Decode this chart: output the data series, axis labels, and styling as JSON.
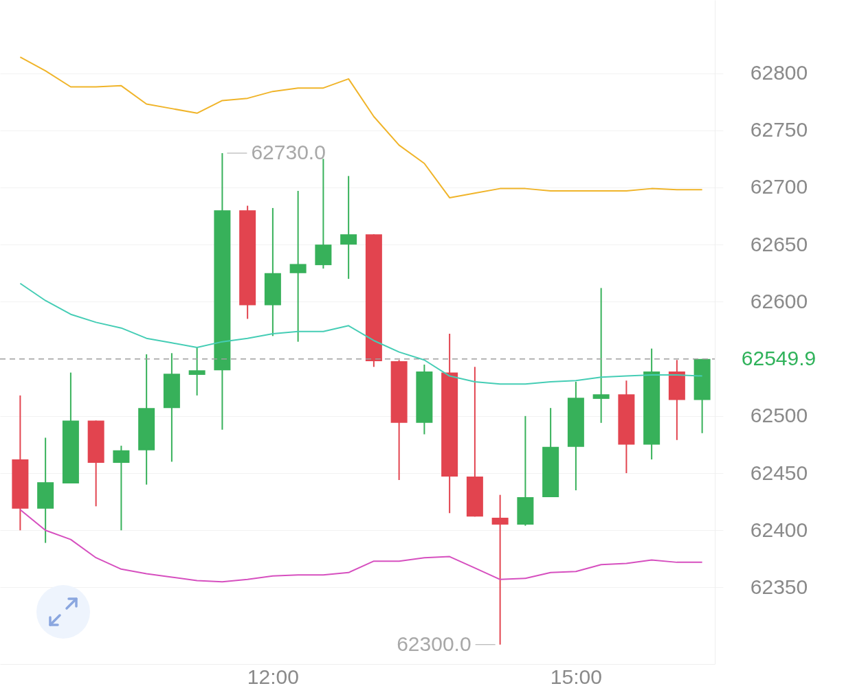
{
  "chart_data": {
    "type": "candlestick",
    "x": [
      9.5,
      9.75,
      10,
      10.25,
      10.5,
      10.75,
      11,
      11.25,
      11.5,
      11.75,
      12,
      12.25,
      12.5,
      12.75,
      13,
      13.25,
      13.5,
      13.75,
      14,
      14.25,
      14.5,
      14.75,
      15,
      15.25,
      15.5,
      15.75,
      16,
      16.25
    ],
    "ohlc": [
      [
        62462,
        62518,
        62400,
        62419
      ],
      [
        62419,
        62481,
        62389,
        62442
      ],
      [
        62441,
        62538,
        62441,
        62496
      ],
      [
        62496,
        62496,
        62421,
        62459
      ],
      [
        62459,
        62474,
        62400,
        62470
      ],
      [
        62470,
        62554,
        62440,
        62507
      ],
      [
        62507,
        62555,
        62460,
        62537
      ],
      [
        62536,
        62560,
        62518,
        62540
      ],
      [
        62540,
        62730,
        62488,
        62680
      ],
      [
        62680,
        62684,
        62585,
        62597
      ],
      [
        62597,
        62682,
        62570,
        62625
      ],
      [
        62625,
        62697,
        62565,
        62633
      ],
      [
        62632,
        62725,
        62629,
        62650
      ],
      [
        62650,
        62710,
        62620,
        62659
      ],
      [
        62659,
        62659,
        62543,
        62548
      ],
      [
        62548,
        62549,
        62444,
        62494
      ],
      [
        62494,
        62545,
        62484,
        62539
      ],
      [
        62538,
        62572,
        62415,
        62447
      ],
      [
        62447,
        62543,
        62412,
        62412
      ],
      [
        62411,
        62431,
        62300,
        62405
      ],
      [
        62405,
        62500,
        62404,
        62429
      ],
      [
        62429,
        62507,
        62429,
        62473
      ],
      [
        62473,
        62530,
        62435,
        62516
      ],
      [
        62515,
        62612,
        62494,
        62519
      ],
      [
        62519,
        62531,
        62450,
        62475
      ],
      [
        62475,
        62559,
        62462,
        62539
      ],
      [
        62539,
        62549,
        62479,
        62514
      ],
      [
        62514,
        62549.9,
        62485,
        62549.9
      ]
    ],
    "colors": [
      "#e2444f",
      "#37b15a",
      "#37b15a",
      "#e2444f",
      "#37b15a",
      "#37b15a",
      "#37b15a",
      "#37b15a",
      "#37b15a",
      "#e2444f",
      "#37b15a",
      "#37b15a",
      "#37b15a",
      "#37b15a",
      "#e2444f",
      "#e2444f",
      "#37b15a",
      "#e2444f",
      "#e2444f",
      "#e2444f",
      "#37b15a",
      "#37b15a",
      "#37b15a",
      "#37b15a",
      "#e2444f",
      "#37b15a",
      "#e2444f",
      "#37b15a"
    ],
    "series": [
      {
        "type": "line",
        "color": "#f0b429",
        "values": [
          62814,
          62802,
          62788,
          62788,
          62789,
          62773,
          62769,
          62765,
          62776,
          62778,
          62784,
          62787,
          62787,
          62795,
          62762,
          62737,
          62721,
          62691,
          62695,
          62699,
          62699,
          62697,
          62697,
          62697,
          62697,
          62699,
          62698,
          62698
        ]
      },
      {
        "type": "line",
        "color": "#45cdb5",
        "values": [
          62616,
          62601,
          62589,
          62582,
          62577,
          62568,
          62564,
          62560,
          62565,
          62568,
          62572,
          62574,
          62574,
          62579,
          62566,
          62556,
          62549,
          62535,
          62530,
          62528,
          62528,
          62530,
          62531,
          62534,
          62535,
          62536,
          62536,
          62535
        ]
      },
      {
        "type": "line",
        "color": "#d64fbf",
        "values": [
          62418,
          62400,
          62392,
          62376,
          62366,
          62362,
          62359,
          62356,
          62355,
          62357,
          62360,
          62361,
          62361,
          62363,
          62373,
          62373,
          62376,
          62377,
          62367,
          62357,
          62358,
          62363,
          62364,
          62370,
          62371,
          62374,
          62372,
          62372
        ]
      }
    ],
    "xlim": [
      9.3,
      16.375
    ],
    "ylim": [
      62283,
      62864
    ],
    "xticks": [
      {
        "value": 12,
        "label": "12:00"
      },
      {
        "value": 15,
        "label": "15:00"
      }
    ],
    "yticks": [
      62350,
      62400,
      62450,
      62500,
      62600,
      62650,
      62700,
      62750,
      62800
    ],
    "grid": "y",
    "ref_lines": [
      {
        "axis": "y",
        "value": 62549.9,
        "label": "62549.9",
        "color": "#9e9e9e",
        "line_style": "dashed"
      }
    ],
    "annotations": [
      {
        "text": "62730.0",
        "x": 11.5,
        "y": 62730
      },
      {
        "text": "62300.0",
        "x": 14.25,
        "y": 62300
      }
    ]
  }
}
